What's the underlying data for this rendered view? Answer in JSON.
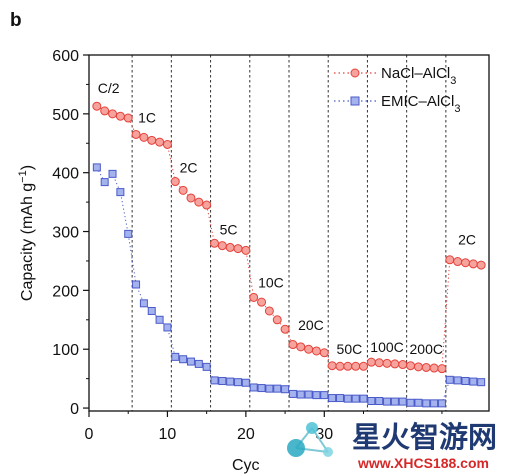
{
  "panel_label": "b",
  "watermark": {
    "cn": "星火智游网",
    "url": "www.XHCS188.com"
  },
  "chart_data": {
    "type": "scatter",
    "xlabel": "Cycle number",
    "xlabel_visible": "Cyc",
    "ylabel": "Capacity (mAh g−1)",
    "xlim": [
      0,
      51
    ],
    "ylim": [
      -5,
      600
    ],
    "x_ticks": [
      "0",
      "10",
      "20",
      "30"
    ],
    "y_ticks": [
      "0",
      "100",
      "200",
      "300",
      "400",
      "500",
      "600"
    ],
    "legend_position": "top-right",
    "dividers": [
      5.5,
      10.5,
      15.5,
      20.5,
      25.5,
      30.5,
      35.5,
      40.5,
      45.5
    ],
    "rate_labels": [
      {
        "text": "C/2",
        "x": 2.5,
        "y": 535
      },
      {
        "text": "1C",
        "x": 7.4,
        "y": 485
      },
      {
        "text": "2C",
        "x": 12.7,
        "y": 400
      },
      {
        "text": "5C",
        "x": 17.8,
        "y": 295
      },
      {
        "text": "10C",
        "x": 23.2,
        "y": 205
      },
      {
        "text": "20C",
        "x": 28.3,
        "y": 133
      },
      {
        "text": "50C",
        "x": 33.2,
        "y": 92
      },
      {
        "text": "100C",
        "x": 38.0,
        "y": 95
      },
      {
        "text": "200C",
        "x": 43.0,
        "y": 92
      },
      {
        "text": "2C",
        "x": 48.2,
        "y": 278
      }
    ],
    "series": [
      {
        "name": "NaCl–AlCl3",
        "marker": "circle",
        "color": "#e5413a",
        "fill": "#f5a39c",
        "x": [
          1,
          2,
          3,
          4,
          5,
          6,
          7,
          8,
          9,
          10,
          11,
          12,
          13,
          14,
          15,
          16,
          17,
          18,
          19,
          20,
          21,
          22,
          23,
          24,
          25,
          26,
          27,
          28,
          29,
          30,
          31,
          32,
          33,
          34,
          35,
          36,
          37,
          38,
          39,
          40,
          41,
          42,
          43,
          44,
          45,
          46,
          47,
          48,
          49,
          50
        ],
        "values": [
          513,
          505,
          500,
          496,
          493,
          465,
          460,
          455,
          452,
          448,
          385,
          370,
          357,
          350,
          345,
          280,
          276,
          273,
          271,
          268,
          188,
          180,
          165,
          150,
          134,
          108,
          104,
          100,
          97,
          94,
          72,
          71,
          71,
          71,
          71,
          78,
          77,
          76,
          75,
          74,
          72,
          70,
          69,
          68,
          67,
          252,
          249,
          247,
          245,
          243
        ]
      },
      {
        "name": "EMIC–AlCl3",
        "marker": "square",
        "color": "#4a5bc8",
        "fill": "#a4b2ee",
        "x": [
          1,
          2,
          3,
          4,
          5,
          6,
          7,
          8,
          9,
          10,
          11,
          12,
          13,
          14,
          15,
          16,
          17,
          18,
          19,
          20,
          21,
          22,
          23,
          24,
          25,
          26,
          27,
          28,
          29,
          30,
          31,
          32,
          33,
          34,
          35,
          36,
          37,
          38,
          39,
          40,
          41,
          42,
          43,
          44,
          45,
          46,
          47,
          48,
          49,
          50
        ],
        "values": [
          409,
          384,
          398,
          367,
          296,
          210,
          178,
          165,
          150,
          137,
          87,
          83,
          79,
          75,
          70,
          47,
          46,
          45,
          44,
          43,
          35,
          34,
          33,
          33,
          32,
          24,
          23,
          23,
          22,
          22,
          17,
          17,
          16,
          16,
          16,
          12,
          12,
          11,
          11,
          11,
          9,
          9,
          8,
          8,
          8,
          48,
          47,
          46,
          45,
          44
        ]
      }
    ]
  }
}
